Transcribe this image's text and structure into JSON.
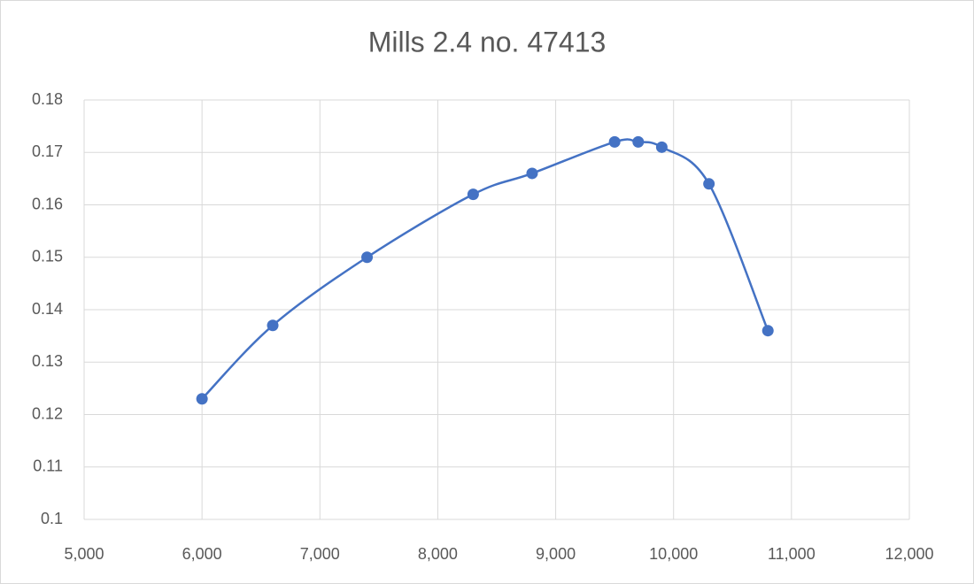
{
  "chart_data": {
    "type": "scatter",
    "title": "Mills 2.4 no. 47413",
    "x": [
      6000,
      6600,
      7400,
      8300,
      8800,
      9500,
      9700,
      9900,
      10300,
      10800
    ],
    "values": [
      0.123,
      0.137,
      0.15,
      0.162,
      0.166,
      0.172,
      0.172,
      0.171,
      0.164,
      0.136
    ],
    "color": "#4472c4",
    "smooth": true,
    "markers": true,
    "xlim": [
      5000,
      12000
    ],
    "xticks": [
      {
        "value": 5000,
        "label": "5,000"
      },
      {
        "value": 6000,
        "label": "6,000"
      },
      {
        "value": 7000,
        "label": "7,000"
      },
      {
        "value": 8000,
        "label": "8,000"
      },
      {
        "value": 9000,
        "label": "9,000"
      },
      {
        "value": 10000,
        "label": "10,000"
      },
      {
        "value": 11000,
        "label": "11,000"
      },
      {
        "value": 12000,
        "label": "12,000"
      }
    ],
    "ylim": [
      0.1,
      0.18
    ],
    "yticks": [
      0.1,
      0.11,
      0.12,
      0.13,
      0.14,
      0.15,
      0.16,
      0.17,
      0.18
    ],
    "grid": true
  }
}
